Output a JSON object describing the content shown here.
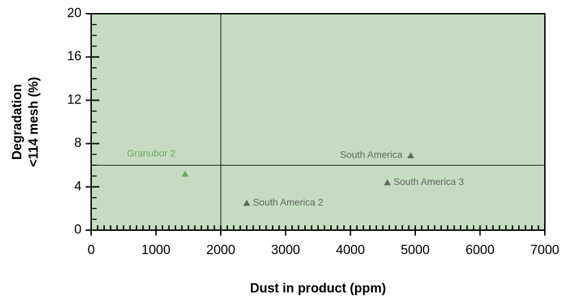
{
  "chart_data": {
    "type": "scatter",
    "xlabel": "Dust in product (ppm)",
    "ylabel": [
      "Degradation",
      "<114 mesh (%)"
    ],
    "xlim": [
      0,
      7000
    ],
    "ylim": [
      0,
      20
    ],
    "xticks": [
      0,
      1000,
      2000,
      3000,
      4000,
      5000,
      6000,
      7000
    ],
    "yticks": [
      0,
      4,
      8,
      12,
      16,
      20
    ],
    "x_minor_step": 100,
    "y_minor_step": 1,
    "background": "#c5dcc0",
    "reference_lines": {
      "x": 2000,
      "y": 6
    },
    "points": [
      {
        "label": "Granubor 2",
        "x": 1450,
        "y": 5.2,
        "color": "#6aa85e"
      },
      {
        "label": "South America 2",
        "x": 2400,
        "y": 2.5,
        "color": "#666666"
      },
      {
        "label": "South America 3",
        "x": 4570,
        "y": 4.4,
        "color": "#666666"
      },
      {
        "label": "South America",
        "x": 4930,
        "y": 6.9,
        "color": "#666666"
      }
    ]
  }
}
